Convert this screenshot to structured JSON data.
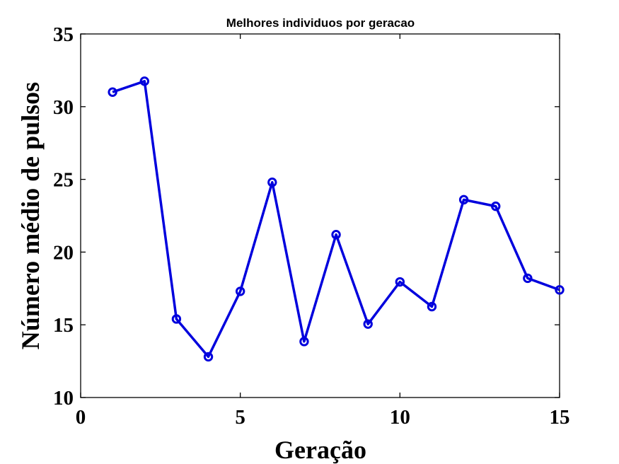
{
  "chart_data": {
    "type": "line",
    "title": "Melhores individuos por geracao",
    "xlabel": "Geração",
    "ylabel": "Número médio de pulsos",
    "xlim": [
      0,
      15
    ],
    "ylim": [
      10,
      35
    ],
    "xticks": [
      0,
      5,
      10,
      15
    ],
    "yticks": [
      10,
      15,
      20,
      25,
      30,
      35
    ],
    "grid": false,
    "series": [
      {
        "color": "#0000dd",
        "marker": "circle",
        "x": [
          1,
          2,
          3,
          4,
          5,
          6,
          7,
          8,
          9,
          10,
          11,
          12,
          13,
          14,
          15
        ],
        "y": [
          31.0,
          31.75,
          15.4,
          12.8,
          17.3,
          24.8,
          13.85,
          21.2,
          15.05,
          17.95,
          16.25,
          23.6,
          23.15,
          18.2,
          17.4
        ]
      }
    ]
  }
}
